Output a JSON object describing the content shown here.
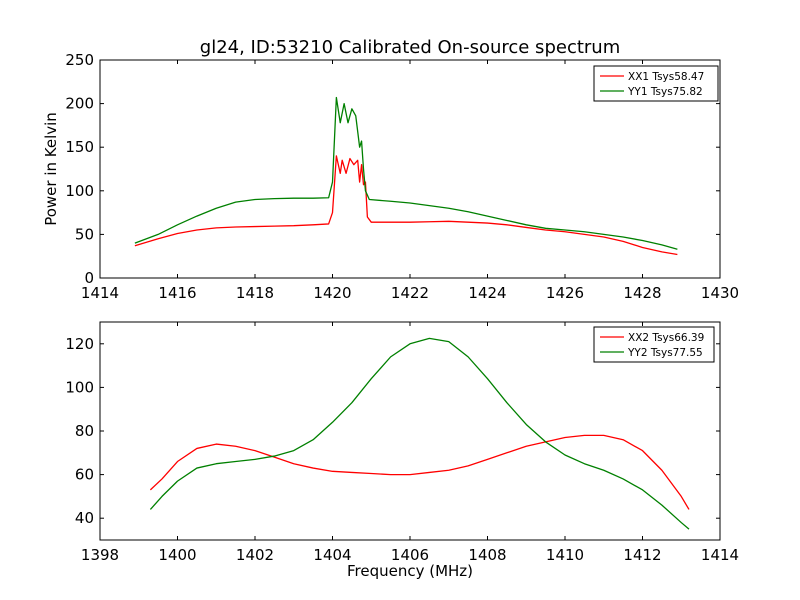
{
  "chart_data": [
    {
      "type": "line",
      "title": "gl24, ID:53210 Calibrated On-source spectrum",
      "xlabel": "",
      "ylabel": "Power in Kelvin",
      "xlim": [
        1414,
        1430
      ],
      "ylim": [
        0,
        250
      ],
      "xticks": [
        1414,
        1416,
        1418,
        1420,
        1422,
        1424,
        1426,
        1428,
        1430
      ],
      "yticks": [
        0,
        50,
        100,
        150,
        200,
        250
      ],
      "legend_position": "top-right",
      "grid": false,
      "series": [
        {
          "name": "XX1 Tsys58.47",
          "color": "#ff0000",
          "points": [
            [
              1414.9,
              37
            ],
            [
              1415.5,
              45
            ],
            [
              1416,
              51
            ],
            [
              1416.5,
              55
            ],
            [
              1417,
              57.5
            ],
            [
              1417.5,
              58.5
            ],
            [
              1418,
              59
            ],
            [
              1418.5,
              59.5
            ],
            [
              1419,
              60
            ],
            [
              1419.5,
              61
            ],
            [
              1419.9,
              62
            ],
            [
              1420.0,
              75
            ],
            [
              1420.1,
              140
            ],
            [
              1420.2,
              120
            ],
            [
              1420.25,
              135
            ],
            [
              1420.35,
              120
            ],
            [
              1420.45,
              137
            ],
            [
              1420.55,
              130
            ],
            [
              1420.65,
              135
            ],
            [
              1420.7,
              110
            ],
            [
              1420.75,
              130
            ],
            [
              1420.8,
              107
            ],
            [
              1420.85,
              110
            ],
            [
              1420.9,
              70
            ],
            [
              1421.0,
              64
            ],
            [
              1421.5,
              64
            ],
            [
              1422,
              64
            ],
            [
              1422.5,
              64.5
            ],
            [
              1423,
              65
            ],
            [
              1423.5,
              64
            ],
            [
              1424,
              63
            ],
            [
              1424.5,
              61
            ],
            [
              1425,
              58
            ],
            [
              1425.5,
              55
            ],
            [
              1426,
              53
            ],
            [
              1426.5,
              50
            ],
            [
              1427,
              47
            ],
            [
              1427.5,
              42
            ],
            [
              1428,
              35
            ],
            [
              1428.5,
              30
            ],
            [
              1428.9,
              27
            ]
          ]
        },
        {
          "name": "YY1 Tsys75.82",
          "color": "#008000",
          "points": [
            [
              1414.9,
              40
            ],
            [
              1415.5,
              50
            ],
            [
              1416,
              61
            ],
            [
              1416.5,
              71
            ],
            [
              1417,
              80
            ],
            [
              1417.5,
              87
            ],
            [
              1418,
              90
            ],
            [
              1418.5,
              91
            ],
            [
              1419,
              91.5
            ],
            [
              1419.5,
              91.5
            ],
            [
              1419.9,
              92
            ],
            [
              1420.0,
              110
            ],
            [
              1420.1,
              207
            ],
            [
              1420.2,
              178
            ],
            [
              1420.3,
              200
            ],
            [
              1420.4,
              178
            ],
            [
              1420.5,
              194
            ],
            [
              1420.6,
              186
            ],
            [
              1420.7,
              150
            ],
            [
              1420.75,
              157
            ],
            [
              1420.8,
              125
            ],
            [
              1420.85,
              100
            ],
            [
              1420.95,
              90
            ],
            [
              1421.5,
              88
            ],
            [
              1422,
              86
            ],
            [
              1422.5,
              83
            ],
            [
              1423,
              80
            ],
            [
              1423.5,
              76
            ],
            [
              1424,
              71
            ],
            [
              1424.5,
              66
            ],
            [
              1425,
              61
            ],
            [
              1425.5,
              57
            ],
            [
              1426,
              55
            ],
            [
              1426.5,
              53
            ],
            [
              1427,
              50
            ],
            [
              1427.5,
              47
            ],
            [
              1428,
              43
            ],
            [
              1428.5,
              38
            ],
            [
              1428.9,
              33
            ]
          ]
        }
      ]
    },
    {
      "type": "line",
      "title": "",
      "xlabel": "Frequency (MHz)",
      "ylabel": "",
      "xlim": [
        1398,
        1414
      ],
      "ylim": [
        30,
        130
      ],
      "xticks": [
        1398,
        1400,
        1402,
        1404,
        1406,
        1408,
        1410,
        1412,
        1414
      ],
      "yticks": [
        40,
        60,
        80,
        100,
        120
      ],
      "legend_position": "top-right",
      "grid": false,
      "series": [
        {
          "name": "XX2 Tsys66.39",
          "color": "#ff0000",
          "points": [
            [
              1399.3,
              53
            ],
            [
              1399.6,
              58
            ],
            [
              1400,
              66
            ],
            [
              1400.5,
              72
            ],
            [
              1401,
              74
            ],
            [
              1401.5,
              73
            ],
            [
              1402,
              71
            ],
            [
              1402.5,
              68
            ],
            [
              1403,
              65
            ],
            [
              1403.5,
              63
            ],
            [
              1404,
              61.5
            ],
            [
              1404.5,
              61
            ],
            [
              1405,
              60.5
            ],
            [
              1405.5,
              60
            ],
            [
              1406,
              60
            ],
            [
              1406.5,
              61
            ],
            [
              1407,
              62
            ],
            [
              1407.5,
              64
            ],
            [
              1408,
              67
            ],
            [
              1408.5,
              70
            ],
            [
              1409,
              73
            ],
            [
              1409.5,
              75
            ],
            [
              1410,
              77
            ],
            [
              1410.5,
              78
            ],
            [
              1411,
              78
            ],
            [
              1411.5,
              76
            ],
            [
              1412,
              71
            ],
            [
              1412.5,
              62
            ],
            [
              1413,
              50
            ],
            [
              1413.2,
              44
            ]
          ]
        },
        {
          "name": "YY2 Tsys77.55",
          "color": "#008000",
          "points": [
            [
              1399.3,
              44
            ],
            [
              1399.6,
              50
            ],
            [
              1400,
              57
            ],
            [
              1400.5,
              63
            ],
            [
              1401,
              65
            ],
            [
              1401.5,
              66
            ],
            [
              1402,
              67
            ],
            [
              1402.5,
              68.5
            ],
            [
              1403,
              71
            ],
            [
              1403.5,
              76
            ],
            [
              1404,
              84
            ],
            [
              1404.5,
              93
            ],
            [
              1405,
              104
            ],
            [
              1405.5,
              114
            ],
            [
              1406,
              120
            ],
            [
              1406.5,
              122.5
            ],
            [
              1407,
              121
            ],
            [
              1407.5,
              114
            ],
            [
              1408,
              104
            ],
            [
              1408.5,
              93
            ],
            [
              1409,
              83
            ],
            [
              1409.5,
              75
            ],
            [
              1410,
              69
            ],
            [
              1410.5,
              65
            ],
            [
              1411,
              62
            ],
            [
              1411.5,
              58
            ],
            [
              1412,
              53
            ],
            [
              1412.5,
              46
            ],
            [
              1413,
              38
            ],
            [
              1413.2,
              35
            ]
          ]
        }
      ]
    }
  ]
}
